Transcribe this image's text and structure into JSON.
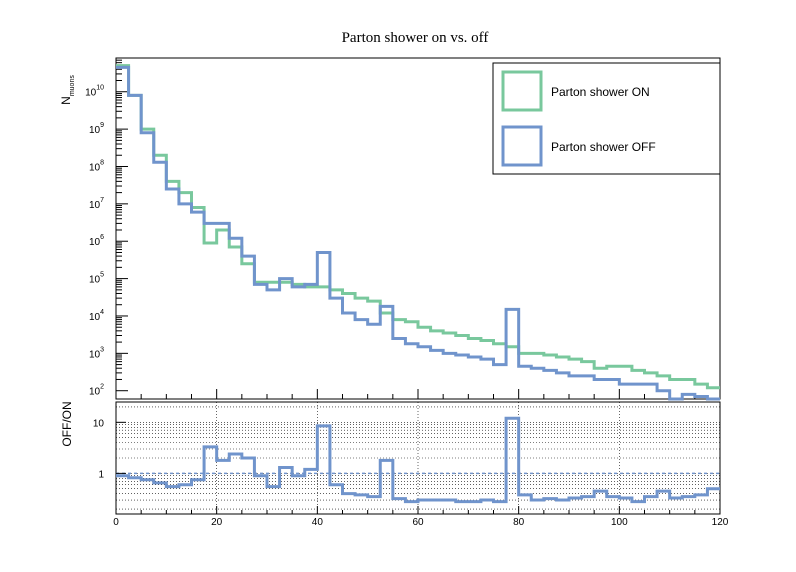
{
  "chart_data": [
    {
      "type": "line",
      "title": "Parton shower on vs. off",
      "xlabel": "",
      "ylabel": "N_muons",
      "ylabel_main": "N",
      "ylabel_sub": "muons",
      "yscale": "log",
      "ylim": [
        60,
        80000000000
      ],
      "xlim": [
        0,
        120
      ],
      "ytick_exponents": [
        "2",
        "3",
        "4",
        "5",
        "6",
        "7",
        "8",
        "9",
        "10"
      ],
      "ytick_base": "10",
      "legend_position": "top-right",
      "bin_edges": [
        0,
        2.5,
        5,
        7.5,
        10,
        12.5,
        15,
        17.5,
        20,
        22.5,
        25,
        27.5,
        30,
        32.5,
        35,
        37.5,
        40,
        42.5,
        45,
        47.5,
        50,
        52.5,
        55,
        57.5,
        60,
        62.5,
        65,
        67.5,
        70,
        72.5,
        75,
        77.5,
        80,
        82.5,
        85,
        87.5,
        90,
        92.5,
        95,
        97.5,
        100,
        102.5,
        105,
        107.5,
        110,
        112.5,
        115,
        117.5,
        120
      ],
      "series": [
        {
          "name": "Parton shower ON",
          "color": "#79c89d",
          "values": [
            50000000000,
            8000000000,
            1000000000,
            200000000,
            40000000,
            20000000,
            8000000,
            900000,
            2000000,
            700000,
            250000,
            80000,
            80000,
            80000,
            70000,
            60000,
            60000,
            50000,
            40000,
            30000,
            25000,
            12000,
            8000,
            7000,
            5000,
            4000,
            3500,
            3000,
            2500,
            2200,
            1800,
            1500,
            1000,
            1000,
            900,
            800,
            700,
            600,
            400,
            450,
            450,
            350,
            300,
            250,
            200,
            200,
            150,
            120
          ]
        },
        {
          "name": "Parton shower OFF",
          "color": "#7094cc",
          "values": [
            45000000000,
            8000000000,
            800000000,
            130000000,
            25000000,
            10000000,
            6000000,
            3000000,
            3000000,
            1200000,
            400000,
            70000,
            50000,
            100000,
            60000,
            70000,
            500000,
            30000,
            12000,
            8000,
            6000,
            18000,
            2500,
            1800,
            1500,
            1200,
            1000,
            900,
            800,
            700,
            500,
            15000,
            450,
            400,
            350,
            300,
            250,
            250,
            200,
            200,
            150,
            150,
            150,
            100,
            60,
            80,
            70,
            60
          ]
        }
      ]
    },
    {
      "type": "line",
      "title": "",
      "xlabel": "",
      "ylabel": "OFF/ON",
      "yscale": "log",
      "ylim": [
        0.16,
        25
      ],
      "xlim": [
        0,
        120
      ],
      "xticks": [
        "0",
        "20",
        "40",
        "60",
        "80",
        "100",
        "120"
      ],
      "yticks": [
        "1",
        "10"
      ],
      "reference_line": 1,
      "series": [
        {
          "name": "",
          "color": "#7094cc",
          "values": [
            0.9,
            0.82,
            0.75,
            0.65,
            0.55,
            0.6,
            0.75,
            3.3,
            1.8,
            2.4,
            2.0,
            0.9,
            0.55,
            1.3,
            0.9,
            1.2,
            8.5,
            0.6,
            0.4,
            0.38,
            0.35,
            1.8,
            0.32,
            0.28,
            0.3,
            0.3,
            0.3,
            0.28,
            0.28,
            0.3,
            0.28,
            12,
            0.38,
            0.3,
            0.32,
            0.3,
            0.33,
            0.35,
            0.45,
            0.35,
            0.33,
            0.28,
            0.35,
            0.45,
            0.33,
            0.35,
            0.38,
            0.5
          ]
        }
      ]
    }
  ]
}
